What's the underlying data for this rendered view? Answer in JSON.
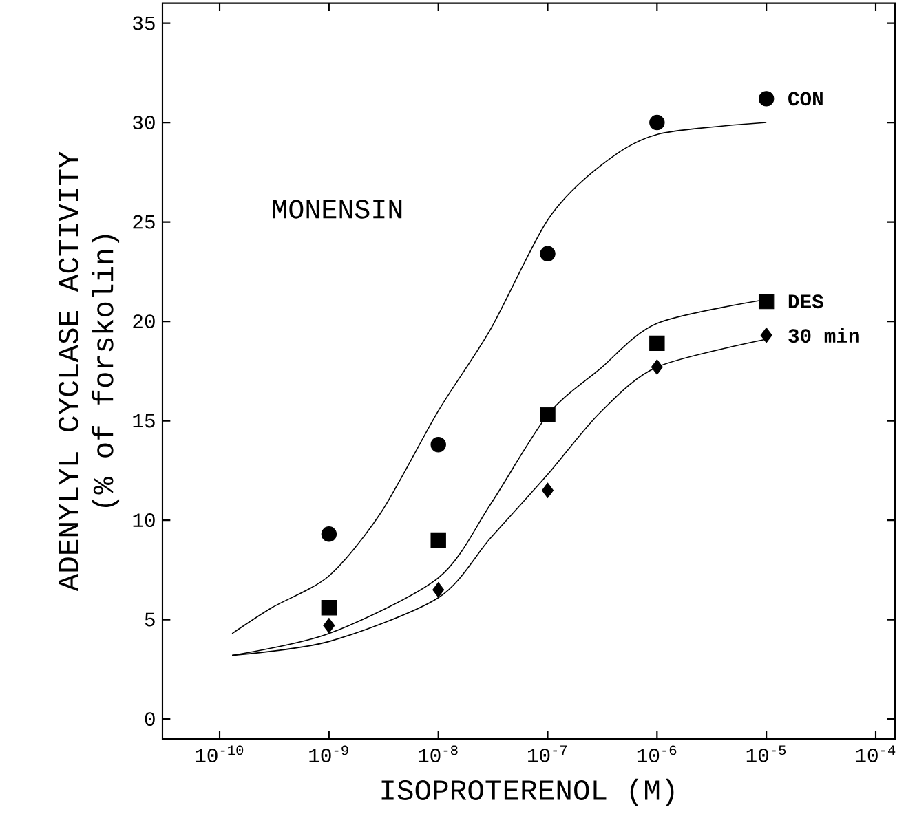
{
  "chart_data": {
    "type": "scatter",
    "xlabel": "ISOPROTERENOL (M)",
    "ylabel": "ADENYLYL CYCLASE ACTIVITY\n(% of forskolin)",
    "log": "x",
    "xlim": [
      3e-11,
      0.00015
    ],
    "ylim": [
      -1,
      36
    ],
    "xticks": [
      {
        "value": 1e-10,
        "label": "10$^{-10}$"
      },
      {
        "value": 1e-09,
        "label": "10$^{-9}$"
      },
      {
        "value": 1e-08,
        "label": "10$^{-8}$"
      },
      {
        "value": 1e-07,
        "label": "10$^{-7}$"
      },
      {
        "value": 1e-06,
        "label": "10$^{-6}$"
      },
      {
        "value": 1e-05,
        "label": "10$^{-5}$"
      },
      {
        "value": 0.0001,
        "label": "10$^{-4}$"
      }
    ],
    "yticks": [
      0,
      5,
      10,
      15,
      20,
      25,
      30,
      35
    ],
    "grid": false,
    "legend": "right",
    "annotations": [
      "MONENSIN"
    ],
    "x": [
      1e-09,
      1e-08,
      1e-07,
      1e-06,
      1e-05
    ],
    "series": [
      {
        "name": "CON",
        "color": "#000000",
        "marker": "circle",
        "values": [
          9.3,
          13.8,
          23.4,
          30.0,
          31.2
        ]
      },
      {
        "name": "DES",
        "color": "#000000",
        "marker": "square",
        "values": [
          5.6,
          9.0,
          15.3,
          18.9,
          21.0
        ]
      },
      {
        "name": "30 min",
        "color": "#000000",
        "marker": "diamond",
        "values": [
          4.7,
          6.5,
          11.5,
          17.7,
          19.3
        ]
      },
      {
        "type": "line",
        "color": "#000000",
        "marker": "none",
        "line_style": "solid",
        "x": [
          1.3e-10,
          3e-10,
          1e-09,
          3e-09,
          1e-08,
          3e-08,
          1e-07,
          3e-07,
          1e-06,
          1e-05
        ],
        "values": [
          4.3,
          5.6,
          7.2,
          10.4,
          15.5,
          19.6,
          25.1,
          27.8,
          29.4,
          30.0
        ]
      },
      {
        "type": "line",
        "color": "#000000",
        "marker": "none",
        "line_style": "solid",
        "x": [
          1.3e-10,
          1e-09,
          1e-08,
          3e-08,
          1e-07,
          3e-07,
          1e-06,
          1e-05
        ],
        "values": [
          3.2,
          4.3,
          7.1,
          10.8,
          15.3,
          17.6,
          19.9,
          21.1
        ]
      },
      {
        "type": "line",
        "color": "#000000",
        "marker": "none",
        "line_style": "solid",
        "x": [
          1.3e-10,
          1e-09,
          1e-08,
          3e-08,
          1e-07,
          3e-07,
          1e-06,
          1e-05
        ],
        "values": [
          3.2,
          3.9,
          6.1,
          9.1,
          12.3,
          15.4,
          17.7,
          19.1
        ]
      }
    ]
  }
}
